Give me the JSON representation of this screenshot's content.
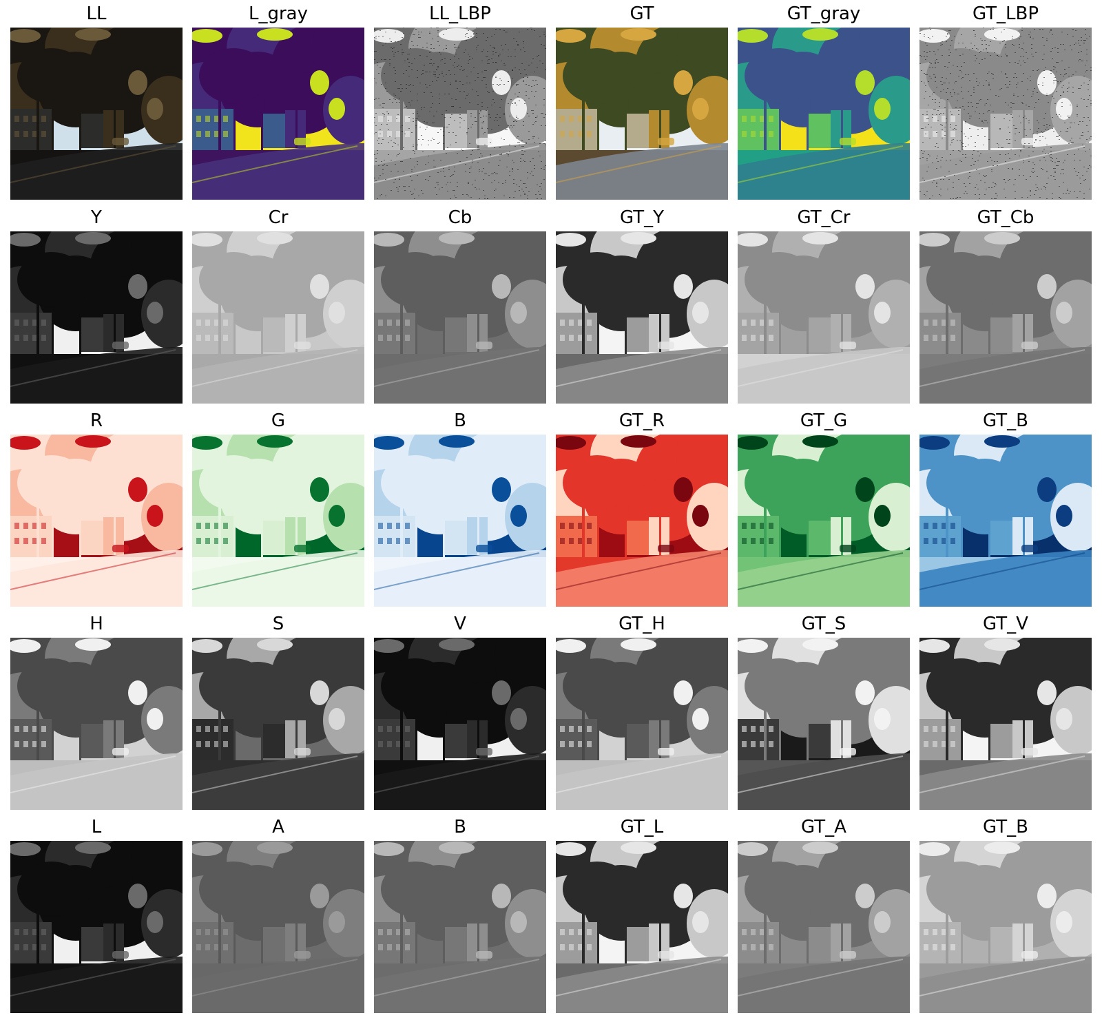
{
  "panels": [
    {
      "title": "LL",
      "style": "ll"
    },
    {
      "title": "L_gray",
      "style": "viridis_dark"
    },
    {
      "title": "LL_LBP",
      "style": "lbp"
    },
    {
      "title": "GT",
      "style": "gt"
    },
    {
      "title": "GT_gray",
      "style": "viridis_bright"
    },
    {
      "title": "GT_LBP",
      "style": "lbp_gt"
    },
    {
      "title": "Y",
      "style": "gray_dark"
    },
    {
      "title": "Cr",
      "style": "gray_light"
    },
    {
      "title": "Cb",
      "style": "gray_mid"
    },
    {
      "title": "GT_Y",
      "style": "gray_full"
    },
    {
      "title": "GT_Cr",
      "style": "gray_light2"
    },
    {
      "title": "GT_Cb",
      "style": "gray_mid2"
    },
    {
      "title": "R",
      "style": "reds_light"
    },
    {
      "title": "G",
      "style": "greens_light"
    },
    {
      "title": "B",
      "style": "blues_light"
    },
    {
      "title": "GT_R",
      "style": "reds_full"
    },
    {
      "title": "GT_G",
      "style": "greens_full"
    },
    {
      "title": "GT_B",
      "style": "blues_full"
    },
    {
      "title": "H",
      "style": "gray_hue"
    },
    {
      "title": "S",
      "style": "gray_sat"
    },
    {
      "title": "V",
      "style": "gray_dark"
    },
    {
      "title": "GT_H",
      "style": "gray_hue"
    },
    {
      "title": "GT_S",
      "style": "gray_sat2"
    },
    {
      "title": "GT_V",
      "style": "gray_full"
    },
    {
      "title": "L",
      "style": "gray_dark"
    },
    {
      "title": "A",
      "style": "gray_mid3"
    },
    {
      "title": "B",
      "style": "gray_mid"
    },
    {
      "title": "GT_L",
      "style": "gray_full"
    },
    {
      "title": "GT_A",
      "style": "gray_mid2"
    },
    {
      "title": "GT_B",
      "style": "gray_light3"
    }
  ],
  "palettes": {
    "ll": {
      "sky": "#cfe0ea",
      "tree": "#1a1712",
      "tree2": "#3a2e1c",
      "building": "#2c2c2a",
      "road": "#1f1f20",
      "ground": "#141312",
      "accent": "#6a5a3a"
    },
    "gt": {
      "sky": "#e8eef2",
      "tree": "#3d4a22",
      "tree2": "#b48a2e",
      "building": "#b3ab8c",
      "road": "#7d8590",
      "ground": "#5c4a30",
      "accent": "#d6a640"
    },
    "viridis_dark": {
      "sky": "#f1e31c",
      "tree": "#3b0d5a",
      "tree2": "#452a7a",
      "building": "#3a5b8c",
      "road": "#46307a",
      "ground": "#3e145e",
      "accent": "#c8e020"
    },
    "viridis_bright": {
      "sky": "#f5e11a",
      "tree": "#3b528b",
      "tree2": "#2a9a8a",
      "building": "#5fc160",
      "road": "#2f7e8e",
      "ground": "#21a085",
      "accent": "#b4dd2c"
    },
    "lbp": {
      "sky": "#f7f7f7",
      "tree": "#6b6b6b",
      "tree2": "#9a9a9a",
      "building": "#bdbdbd",
      "road": "#8a8a8a",
      "ground": "#a5a5a5",
      "accent": "#ededed"
    },
    "lbp_gt": {
      "sky": "#eeeeee",
      "tree": "#8a8a8a",
      "tree2": "#a6a6a6",
      "building": "#b8b8b8",
      "road": "#9a9a9a",
      "ground": "#a0a0a0",
      "accent": "#f2f2f2"
    },
    "gray_dark": {
      "sky": "#f0f0f0",
      "tree": "#0d0d0d",
      "tree2": "#2b2b2b",
      "building": "#3a3a3a",
      "road": "#1a1a1a",
      "ground": "#101010",
      "accent": "#6a6a6a"
    },
    "gray_light": {
      "sky": "#c8c8c8",
      "tree": "#a8a8a8",
      "tree2": "#cfcfcf",
      "building": "#bababa",
      "road": "#b2b2b2",
      "ground": "#a9a9a9",
      "accent": "#e0e0e0"
    },
    "gray_light2": {
      "sky": "#a0a0a0",
      "tree": "#8c8c8c",
      "tree2": "#b0b0b0",
      "building": "#a4a4a4",
      "road": "#c6c6c6",
      "ground": "#d2d2d2",
      "accent": "#e4e4e4"
    },
    "gray_light3": {
      "sky": "#b0b0b0",
      "tree": "#9c9c9c",
      "tree2": "#d4d4d4",
      "building": "#b4b4b4",
      "road": "#8e8e8e",
      "ground": "#9a9a9a",
      "accent": "#ececec"
    },
    "gray_mid": {
      "sky": "#6e6e6e",
      "tree": "#5e5e5e",
      "tree2": "#8e8e8e",
      "building": "#777777",
      "road": "#727272",
      "ground": "#6c6c6c",
      "accent": "#b8b8b8"
    },
    "gray_mid2": {
      "sky": "#8a8a8a",
      "tree": "#6d6d6d",
      "tree2": "#a2a2a2",
      "building": "#8c8c8c",
      "road": "#747474",
      "ground": "#7c7c7c",
      "accent": "#cccccc"
    },
    "gray_mid3": {
      "sky": "#6c6c6c",
      "tree": "#5a5a5a",
      "tree2": "#7e7e7e",
      "building": "#707070",
      "road": "#6a6a6a",
      "ground": "#686868",
      "accent": "#9a9a9a"
    },
    "gray_full": {
      "sky": "#f4f4f4",
      "tree": "#2a2a2a",
      "tree2": "#c8c8c8",
      "building": "#9c9c9c",
      "road": "#8a8a8a",
      "ground": "#6a6a6a",
      "accent": "#e6e6e6"
    },
    "gray_hue": {
      "sky": "#d2d2d2",
      "tree": "#4a4a4a",
      "tree2": "#7a7a7a",
      "building": "#5a5a5a",
      "road": "#c4c4c4",
      "ground": "#bdbdbd",
      "accent": "#f0f0f0"
    },
    "gray_sat": {
      "sky": "#6a6a6a",
      "tree": "#3a3a3a",
      "tree2": "#a8a8a8",
      "building": "#2c2c2c",
      "road": "#3e3e3e",
      "ground": "#2e2e2e",
      "accent": "#d8d8d8"
    },
    "gray_sat2": {
      "sky": "#1a1a1a",
      "tree": "#7a7a7a",
      "tree2": "#e0e0e0",
      "building": "#3a3a3a",
      "road": "#4e4e4e",
      "ground": "#565656",
      "accent": "#f2f2f2"
    },
    "reds_light": {
      "sky": "#a50f15",
      "tree": "#fde0d2",
      "tree2": "#f8b9a0",
      "building": "#fcd4c2",
      "road": "#fee6da",
      "ground": "#fff0e9",
      "accent": "#c8141a"
    },
    "reds_full": {
      "sky": "#9d0c13",
      "tree": "#e4352a",
      "tree2": "#ffd5c0",
      "building": "#f26a4c",
      "road": "#f4826a",
      "ground": "#e3392b",
      "accent": "#7a0610"
    },
    "greens_light": {
      "sky": "#00672a",
      "tree": "#e2f4de",
      "tree2": "#b6e0ad",
      "building": "#d8efd2",
      "road": "#eaf7e6",
      "ground": "#f2faef",
      "accent": "#07732e"
    },
    "greens_full": {
      "sky": "#005c26",
      "tree": "#3da35a",
      "tree2": "#d8efd2",
      "building": "#5cb86b",
      "road": "#96d28e",
      "ground": "#72c375",
      "accent": "#00441b"
    },
    "blues_light": {
      "sky": "#08458f",
      "tree": "#e0ecf7",
      "tree2": "#b5d3ea",
      "building": "#d3e4f3",
      "road": "#e6f0f9",
      "ground": "#eff5fb",
      "accent": "#0a4f9a"
    },
    "blues_full": {
      "sky": "#08306b",
      "tree": "#4d93c7",
      "tree2": "#dbe9f6",
      "building": "#5ea3d0",
      "road": "#3a83c1",
      "ground": "#9cc7e4",
      "accent": "#0b3d80"
    }
  }
}
